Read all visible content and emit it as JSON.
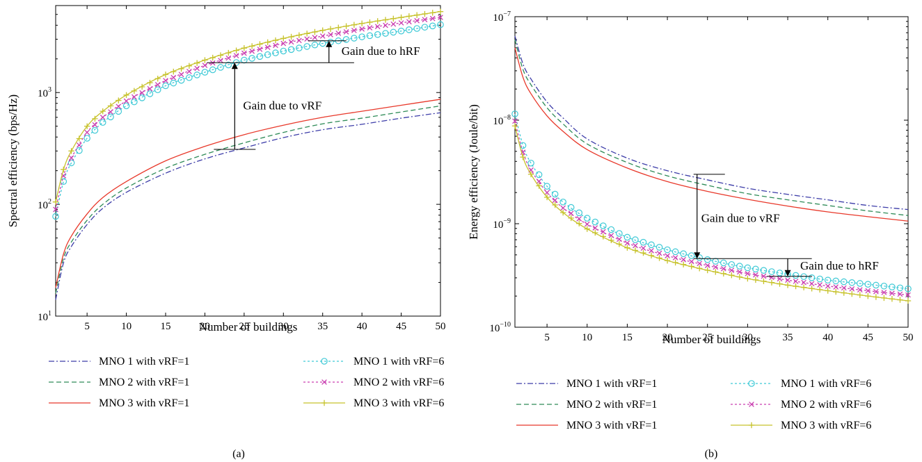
{
  "chart_data": [
    {
      "type": "line",
      "panel_label": "(a)",
      "xlabel": "Number of buildings",
      "ylabel": "Spectral efficiency (bps/Hz)",
      "yscale": "log",
      "xlim": [
        1,
        50
      ],
      "ylim": [
        10,
        6000
      ],
      "xticks": [
        5,
        10,
        15,
        20,
        25,
        30,
        35,
        40,
        45,
        50
      ],
      "yticks": [
        {
          "value": 10,
          "base": "10",
          "exp": "1"
        },
        {
          "value": 100,
          "base": "10",
          "exp": "2"
        },
        {
          "value": 1000,
          "base": "10",
          "exp": "3"
        }
      ],
      "series": [
        {
          "name": "MNO 1 with vRF=1",
          "color": "#3c3ca8",
          "dash": "8,3,2,3",
          "marker": "none",
          "x": [
            1,
            2,
            3,
            5,
            7,
            10,
            15,
            20,
            25,
            30,
            35,
            40,
            45,
            50
          ],
          "y": [
            14,
            30,
            42,
            66,
            92,
            128,
            190,
            255,
            320,
            395,
            465,
            520,
            590,
            660
          ]
        },
        {
          "name": "MNO 2 with vRF=1",
          "color": "#2e8b57",
          "dash": "7,4",
          "marker": "none",
          "x": [
            1,
            2,
            3,
            5,
            7,
            10,
            15,
            20,
            25,
            30,
            35,
            40,
            45,
            50
          ],
          "y": [
            16,
            33,
            46,
            72,
            100,
            140,
            210,
            280,
            355,
            440,
            525,
            590,
            670,
            760
          ]
        },
        {
          "name": "MNO 3 with vRF=1",
          "color": "#e8382a",
          "dash": "",
          "marker": "none",
          "x": [
            1,
            2,
            3,
            5,
            7,
            10,
            15,
            20,
            25,
            30,
            35,
            40,
            45,
            50
          ],
          "y": [
            18,
            36,
            52,
            82,
            115,
            160,
            245,
            330,
            420,
            510,
            600,
            680,
            770,
            870
          ]
        },
        {
          "name": "MNO 1 with vRF=6",
          "color": "#3ec9d6",
          "dash": "3,3",
          "marker": "circle",
          "x": [
            1,
            2,
            3,
            5,
            7,
            10,
            15,
            20,
            25,
            30,
            35,
            40,
            45,
            50
          ],
          "y": [
            78,
            160,
            235,
            390,
            540,
            760,
            1150,
            1520,
            1950,
            2350,
            2750,
            3150,
            3550,
            4050
          ]
        },
        {
          "name": "MNO 2 with vRF=6",
          "color": "#c93fb0",
          "dash": "3,3",
          "marker": "x",
          "x": [
            1,
            2,
            3,
            5,
            7,
            10,
            15,
            20,
            25,
            30,
            35,
            40,
            45,
            50
          ],
          "y": [
            90,
            180,
            260,
            440,
            600,
            840,
            1280,
            1750,
            2250,
            2750,
            3200,
            3700,
            4200,
            4700
          ]
        },
        {
          "name": "MNO 3 with vRF=6",
          "color": "#c7c22c",
          "dash": "",
          "marker": "plus",
          "x": [
            1,
            2,
            3,
            5,
            7,
            10,
            15,
            20,
            25,
            30,
            35,
            40,
            45,
            50
          ],
          "y": [
            105,
            205,
            300,
            500,
            680,
            950,
            1450,
            1950,
            2500,
            3050,
            3600,
            4150,
            4700,
            5300
          ]
        }
      ],
      "annotations": [
        {
          "text": "Gain due to vRF",
          "x": 23.8,
          "from": 310,
          "to": 1850
        },
        {
          "text": "Gain due to hRF",
          "x": 35.8,
          "from": 1850,
          "to": 2900
        }
      ],
      "legend": {
        "placement": "below",
        "columns": 2
      }
    },
    {
      "type": "line",
      "panel_label": "(b)",
      "xlabel": "Number of buildings",
      "ylabel": "Energy efficiency (Joule/bit)",
      "yscale": "log",
      "xlim": [
        1,
        50
      ],
      "ylim": [
        1e-10,
        1e-07
      ],
      "xticks": [
        5,
        10,
        15,
        20,
        25,
        30,
        35,
        40,
        45,
        50
      ],
      "yticks": [
        {
          "value": 1e-10,
          "base": "10",
          "exp": "−10"
        },
        {
          "value": 1e-09,
          "base": "10",
          "exp": "−9"
        },
        {
          "value": 1e-08,
          "base": "10",
          "exp": "−8"
        },
        {
          "value": 1e-07,
          "base": "10",
          "exp": "−7"
        }
      ],
      "series": [
        {
          "name": "MNO 1 with vRF=1",
          "color": "#3c3ca8",
          "dash": "8,3,2,3",
          "marker": "none",
          "x": [
            1,
            2,
            3,
            5,
            7,
            10,
            15,
            20,
            25,
            30,
            35,
            40,
            45,
            50
          ],
          "y": [
            6.5e-08,
            3.5e-08,
            2.5e-08,
            1.5e-08,
            1.05e-08,
            6.6e-09,
            4.3e-09,
            3.25e-09,
            2.65e-09,
            2.2e-09,
            1.92e-09,
            1.7e-09,
            1.5e-09,
            1.37e-09
          ]
        },
        {
          "name": "MNO 2 with vRF=1",
          "color": "#2e8b57",
          "dash": "7,4",
          "marker": "none",
          "x": [
            1,
            2,
            3,
            5,
            7,
            10,
            15,
            20,
            25,
            30,
            35,
            40,
            45,
            50
          ],
          "y": [
            6e-08,
            3.1e-08,
            2.2e-08,
            1.32e-08,
            9.2e-09,
            5.9e-09,
            3.9e-09,
            2.9e-09,
            2.35e-09,
            1.95e-09,
            1.7e-09,
            1.5e-09,
            1.33e-09,
            1.2e-09
          ]
        },
        {
          "name": "MNO 3 with vRF=1",
          "color": "#e8382a",
          "dash": "",
          "marker": "none",
          "x": [
            1,
            2,
            3,
            5,
            7,
            10,
            15,
            20,
            25,
            30,
            35,
            40,
            45,
            50
          ],
          "y": [
            5e-08,
            2.6e-08,
            1.8e-08,
            1.1e-08,
            7.8e-09,
            5.2e-09,
            3.45e-09,
            2.55e-09,
            2.05e-09,
            1.72e-09,
            1.48e-09,
            1.3e-09,
            1.17e-09,
            1.06e-09
          ]
        },
        {
          "name": "MNO 1 with vRF=6",
          "color": "#3ec9d6",
          "dash": "3,3",
          "marker": "circle",
          "x": [
            1,
            2,
            3,
            5,
            7,
            10,
            15,
            20,
            25,
            30,
            35,
            40,
            45,
            50
          ],
          "y": [
            1.15e-08,
            5.7e-09,
            3.85e-09,
            2.3e-09,
            1.62e-09,
            1.13e-09,
            7.4e-10,
            5.6e-10,
            4.5e-10,
            3.75e-10,
            3.25e-10,
            2.85e-10,
            2.6e-10,
            2.35e-10
          ]
        },
        {
          "name": "MNO 2 with vRF=6",
          "color": "#c93fb0",
          "dash": "3,3",
          "marker": "x",
          "x": [
            1,
            2,
            3,
            5,
            7,
            10,
            15,
            20,
            25,
            30,
            35,
            40,
            45,
            50
          ],
          "y": [
            9.8e-09,
            4.9e-09,
            3.3e-09,
            2e-09,
            1.42e-09,
            9.9e-10,
            6.5e-10,
            4.9e-10,
            3.95e-10,
            3.3e-10,
            2.85e-10,
            2.5e-10,
            2.25e-10,
            2.05e-10
          ]
        },
        {
          "name": "MNO 3 with vRF=6",
          "color": "#c7c22c",
          "dash": "",
          "marker": "plus",
          "x": [
            1,
            2,
            3,
            5,
            7,
            10,
            15,
            20,
            25,
            30,
            35,
            40,
            45,
            50
          ],
          "y": [
            8.8e-09,
            4.4e-09,
            3e-09,
            1.8e-09,
            1.28e-09,
            8.9e-10,
            5.85e-10,
            4.4e-10,
            3.55e-10,
            2.95e-10,
            2.55e-10,
            2.25e-10,
            2e-10,
            1.8e-10
          ]
        }
      ],
      "annotations": [
        {
          "text": "Gain due to vRF",
          "x": 23.7,
          "from": 3e-09,
          "to": 4.6e-10
        },
        {
          "text": "Gain due to hRF",
          "x": 35.0,
          "from": 4.6e-10,
          "to": 3.1e-10
        }
      ],
      "legend": {
        "placement": "below",
        "columns": 2
      }
    }
  ]
}
